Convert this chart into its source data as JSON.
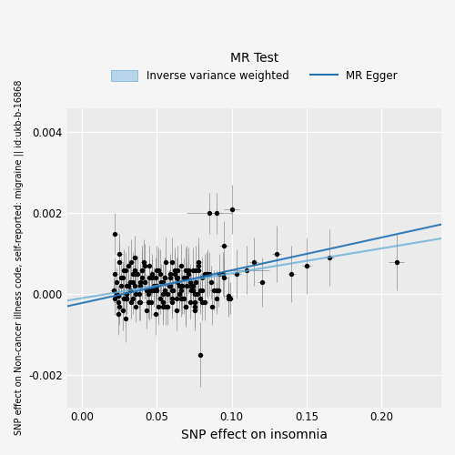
{
  "title": "MR Test",
  "xlabel": "SNP effect on insomnia",
  "ylabel": "SNP effect on Non-cancer illness code, self-reported: migraine || id:ukb-b-16868",
  "bg_color": "#ebebeb",
  "panel_bg": "#ebebeb",
  "grid_color": "white",
  "xlim": [
    -0.01,
    0.24
  ],
  "ylim": [
    -0.0028,
    0.0046
  ],
  "x_ticks": [
    0.0,
    0.05,
    0.1,
    0.15,
    0.2
  ],
  "y_ticks": [
    -0.002,
    0.0,
    0.002,
    0.004
  ],
  "ivw_color": "#6baed6",
  "egger_color": "#2171b5",
  "point_color": "black",
  "point_size": 8,
  "error_bar_color": "#888888",
  "legend_title": "MR Test",
  "legend_labels": [
    "Inverse variance weighted",
    "MR Egger"
  ],
  "ivw_slope": 0.00615,
  "ivw_intercept": -0.0001,
  "egger_slope": 0.0081,
  "egger_intercept": -0.00022,
  "snp_x": [
    0.021,
    0.022,
    0.023,
    0.024,
    0.025,
    0.026,
    0.027,
    0.028,
    0.029,
    0.03,
    0.031,
    0.032,
    0.033,
    0.034,
    0.035,
    0.036,
    0.037,
    0.038,
    0.039,
    0.04,
    0.041,
    0.042,
    0.043,
    0.044,
    0.045,
    0.046,
    0.047,
    0.048,
    0.049,
    0.05,
    0.051,
    0.052,
    0.053,
    0.054,
    0.055,
    0.056,
    0.057,
    0.058,
    0.059,
    0.06,
    0.061,
    0.062,
    0.063,
    0.064,
    0.065,
    0.066,
    0.067,
    0.068,
    0.069,
    0.07,
    0.071,
    0.072,
    0.073,
    0.074,
    0.075,
    0.076,
    0.077,
    0.078,
    0.079,
    0.08,
    0.082,
    0.085,
    0.088,
    0.09,
    0.092,
    0.095,
    0.098,
    0.1,
    0.103,
    0.11,
    0.115,
    0.12,
    0.13,
    0.14,
    0.15,
    0.165,
    0.21,
    0.022,
    0.025,
    0.028,
    0.03,
    0.033,
    0.036,
    0.039,
    0.042,
    0.045,
    0.048,
    0.051,
    0.054,
    0.057,
    0.06,
    0.063,
    0.066,
    0.069,
    0.072,
    0.075,
    0.078,
    0.022,
    0.026,
    0.03,
    0.034,
    0.038,
    0.042,
    0.046,
    0.05,
    0.054,
    0.058,
    0.062,
    0.066,
    0.07,
    0.074,
    0.078,
    0.082,
    0.086,
    0.09,
    0.094,
    0.098,
    0.023,
    0.027,
    0.031,
    0.035,
    0.039,
    0.043,
    0.047,
    0.051,
    0.055,
    0.059,
    0.063,
    0.067,
    0.071,
    0.075,
    0.079,
    0.083,
    0.087,
    0.091,
    0.095,
    0.099,
    0.024,
    0.028,
    0.032,
    0.036,
    0.04,
    0.044,
    0.048,
    0.052,
    0.056,
    0.06,
    0.064,
    0.068,
    0.072,
    0.076,
    0.08,
    0.024,
    0.029,
    0.034,
    0.039,
    0.044,
    0.049,
    0.054,
    0.059,
    0.064,
    0.069,
    0.074,
    0.079,
    0.084,
    0.025,
    0.03,
    0.035,
    0.04,
    0.045,
    0.05,
    0.055,
    0.06,
    0.065,
    0.07,
    0.075,
    0.08,
    0.085,
    0.09
  ],
  "snp_y": [
    0.0001,
    0.0005,
    0.0003,
    -5e-05,
    0.0008,
    0.0002,
    0.0004,
    -0.0001,
    0.0006,
    0.0,
    0.0007,
    0.0001,
    -0.0002,
    0.0003,
    0.0009,
    -0.0003,
    0.0005,
    0.0,
    0.0002,
    0.0006,
    0.0008,
    0.0003,
    -0.0004,
    0.0001,
    0.0007,
    -0.0002,
    0.0004,
    0.0001,
    -0.0005,
    0.0002,
    0.0006,
    -0.0001,
    0.0003,
    0.0,
    0.0004,
    0.0008,
    -0.0003,
    0.0002,
    0.0005,
    -0.0002,
    0.0001,
    0.0006,
    -0.0004,
    0.0003,
    0.0,
    0.0007,
    -0.0001,
    0.0004,
    -0.0003,
    0.0002,
    0.0005,
    -0.0002,
    0.0001,
    0.0006,
    -0.0004,
    0.0003,
    0.0,
    0.0007,
    -0.0001,
    0.0004,
    0.0005,
    0.002,
    0.0001,
    0.002,
    0.0005,
    0.0012,
    -5e-05,
    0.0021,
    0.0005,
    0.0006,
    0.0008,
    0.0003,
    0.001,
    0.0005,
    0.0007,
    0.0009,
    0.0008,
    0.0015,
    0.001,
    0.0006,
    -0.0001,
    0.0008,
    0.0005,
    0.0002,
    0.0007,
    0.0004,
    0.0001,
    0.0006,
    0.0003,
    0.0,
    0.0008,
    0.0004,
    0.0001,
    0.0006,
    0.0003,
    0.0,
    0.0008,
    -0.0001,
    0.0004,
    0.0002,
    0.0005,
    -0.0002,
    0.0003,
    0.0001,
    0.0006,
    -0.0003,
    0.0002,
    0.0005,
    -0.0001,
    0.0004,
    0.0002,
    0.0006,
    -0.0002,
    0.0003,
    0.0001,
    0.0005,
    -0.0001,
    0.0,
    -0.0004,
    0.0002,
    0.0006,
    -0.0002,
    0.0001,
    0.0005,
    -0.0003,
    0.0001,
    0.0004,
    -0.0001,
    0.0002,
    0.0006,
    -0.0002,
    0.0001,
    0.0005,
    -0.0003,
    0.0001,
    0.0004,
    -0.0001,
    -0.0005,
    -0.0001,
    0.0003,
    0.0,
    0.0004,
    -0.0002,
    0.0002,
    0.0005,
    -0.0003,
    0.0001,
    0.0004,
    -0.0001,
    0.0002,
    0.0006,
    -0.0002,
    -0.0002,
    -0.0006,
    -0.0001,
    0.0003,
    0.0,
    0.0004,
    -0.0002,
    0.0002,
    0.0006,
    -0.0003,
    0.0001,
    -0.0015,
    0.0005,
    -0.0003,
    -0.0001,
    0.0002,
    0.0006,
    -0.0002,
    0.0001,
    0.0004,
    -0.0001,
    0.0002,
    0.0006,
    -0.0003,
    0.0001,
    0.0005,
    -0.0001
  ],
  "snp_x_err": [
    0.002,
    0.002,
    0.002,
    0.002,
    0.002,
    0.002,
    0.002,
    0.002,
    0.002,
    0.002,
    0.002,
    0.002,
    0.002,
    0.002,
    0.002,
    0.002,
    0.002,
    0.002,
    0.002,
    0.002,
    0.002,
    0.002,
    0.002,
    0.002,
    0.002,
    0.002,
    0.002,
    0.002,
    0.002,
    0.002,
    0.002,
    0.002,
    0.002,
    0.002,
    0.002,
    0.002,
    0.002,
    0.002,
    0.002,
    0.002,
    0.002,
    0.002,
    0.002,
    0.002,
    0.002,
    0.002,
    0.002,
    0.002,
    0.002,
    0.002,
    0.002,
    0.002,
    0.002,
    0.002,
    0.002,
    0.002,
    0.002,
    0.002,
    0.002,
    0.002,
    0.003,
    0.015,
    0.003,
    0.003,
    0.003,
    0.003,
    0.003,
    0.005,
    0.003,
    0.015,
    0.003,
    0.003,
    0.003,
    0.003,
    0.003,
    0.003,
    0.005,
    0.002,
    0.002,
    0.002,
    0.002,
    0.002,
    0.002,
    0.002,
    0.002,
    0.002,
    0.002,
    0.002,
    0.002,
    0.002,
    0.002,
    0.002,
    0.002,
    0.002,
    0.002,
    0.002,
    0.002,
    0.002,
    0.002,
    0.002,
    0.002,
    0.002,
    0.002,
    0.002,
    0.002,
    0.002,
    0.002,
    0.002,
    0.002,
    0.002,
    0.002,
    0.002,
    0.002,
    0.002,
    0.002,
    0.002,
    0.002,
    0.002,
    0.002,
    0.002,
    0.002,
    0.002,
    0.002,
    0.002,
    0.002,
    0.002,
    0.002,
    0.002,
    0.002,
    0.002,
    0.002,
    0.002,
    0.002,
    0.002,
    0.002,
    0.002,
    0.002,
    0.002,
    0.002,
    0.002,
    0.002,
    0.002,
    0.002,
    0.002,
    0.002,
    0.002,
    0.002,
    0.002,
    0.002,
    0.002,
    0.002,
    0.002,
    0.002,
    0.002,
    0.002,
    0.002,
    0.002,
    0.002,
    0.002,
    0.002,
    0.002,
    0.002,
    0.002,
    0.002,
    0.002,
    0.002,
    0.002,
    0.002,
    0.002,
    0.002,
    0.002,
    0.002,
    0.002,
    0.002,
    0.002,
    0.002,
    0.002,
    0.002,
    0.002
  ],
  "snp_y_err": [
    0.0003,
    0.0004,
    0.00035,
    0.00025,
    0.0005,
    0.0003,
    0.0004,
    0.00025,
    0.00045,
    0.0003,
    0.0005,
    0.0003,
    0.0004,
    0.00035,
    0.00055,
    0.0004,
    0.00045,
    0.0003,
    0.00035,
    0.0005,
    0.00055,
    0.0004,
    0.00045,
    0.00035,
    0.0005,
    0.0004,
    0.00045,
    0.00035,
    0.0005,
    0.00035,
    0.0005,
    0.0004,
    0.00045,
    0.00035,
    0.0005,
    0.0006,
    0.00045,
    0.0004,
    0.0005,
    0.0004,
    0.00035,
    0.00055,
    0.0005,
    0.00045,
    0.0004,
    0.00055,
    0.0004,
    0.0005,
    0.00045,
    0.0004,
    0.0005,
    0.0004,
    0.0004,
    0.00055,
    0.0005,
    0.00045,
    0.0004,
    0.00055,
    0.0004,
    0.0005,
    0.0005,
    0.0005,
    0.0005,
    0.0005,
    0.0005,
    0.0006,
    0.0005,
    0.0006,
    0.0006,
    0.0006,
    0.0006,
    0.0006,
    0.0007,
    0.0007,
    0.0007,
    0.0007,
    0.0007,
    0.0005,
    0.0005,
    0.0005,
    0.0004,
    0.00055,
    0.00045,
    0.0004,
    0.00055,
    0.00045,
    0.0004,
    0.00055,
    0.00045,
    0.0004,
    0.0006,
    0.0005,
    0.0004,
    0.00055,
    0.00045,
    0.0004,
    0.0006,
    0.0004,
    0.0005,
    0.0004,
    0.00055,
    0.00045,
    0.0004,
    0.0005,
    0.0006,
    0.00045,
    0.0004,
    0.00055,
    0.00045,
    0.0004,
    0.00055,
    0.0006,
    0.00045,
    0.0004,
    0.0005,
    0.00055,
    0.0004,
    0.0004,
    0.0005,
    0.0004,
    0.00055,
    0.00045,
    0.0004,
    0.0005,
    0.00045,
    0.0004,
    0.0005,
    0.0004,
    0.0004,
    0.00055,
    0.00045,
    0.0004,
    0.00055,
    0.00045,
    0.0004,
    0.0005,
    0.0004,
    0.0005,
    0.0004,
    0.00045,
    0.0004,
    0.0005,
    0.0004,
    0.00045,
    0.0006,
    0.00045,
    0.0004,
    0.0005,
    0.0004,
    0.00045,
    0.0006,
    0.00045,
    0.0004,
    0.0006,
    0.0004,
    0.00045,
    0.0004,
    0.0005,
    0.00045,
    0.0004,
    0.0006,
    0.0005,
    0.0004,
    0.0008,
    0.0006,
    0.00045,
    0.0004,
    0.00045,
    0.0006,
    0.00045,
    0.0004,
    0.0005,
    0.0004,
    0.00045,
    0.0006,
    0.0005,
    0.0004,
    0.00055,
    0.0004
  ]
}
